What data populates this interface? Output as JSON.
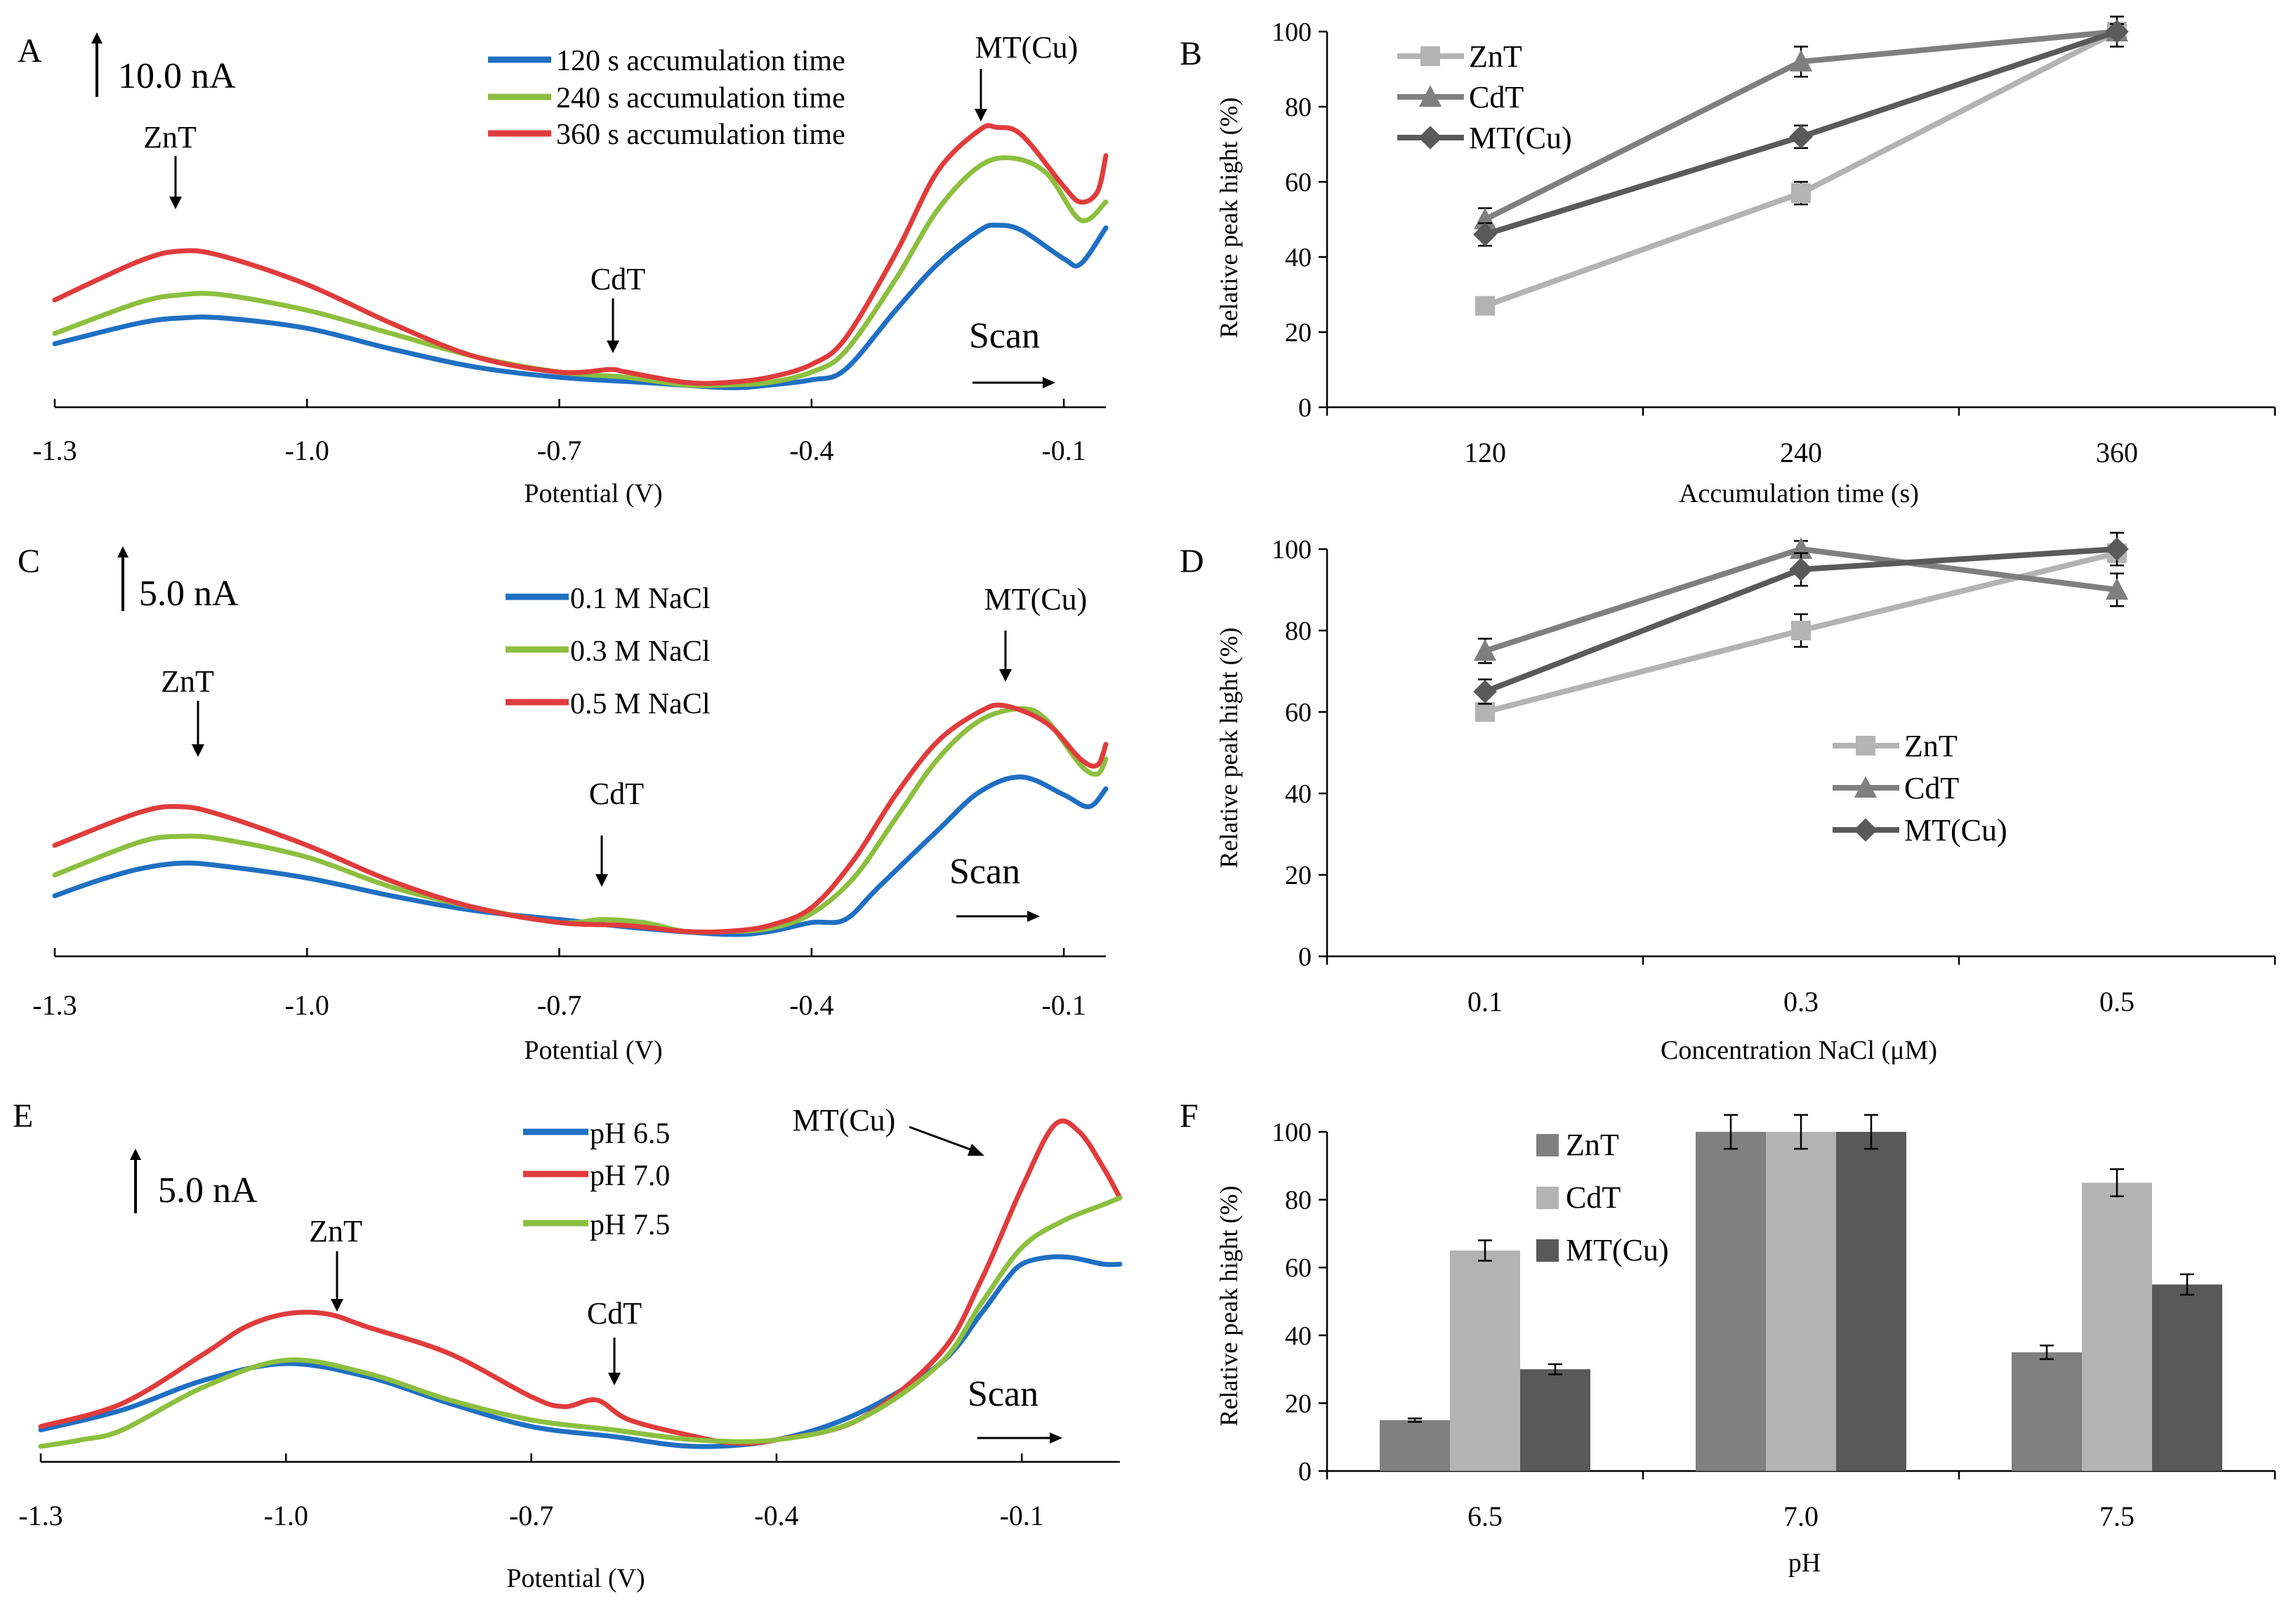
{
  "chart_data": [
    {
      "id": "A",
      "panel_label": "A",
      "type": "line",
      "xlabel": "Potential  (V)",
      "x_ticks": [
        "-1.3",
        "-1.0",
        "-0.7",
        "-0.4",
        "-0.1"
      ],
      "xlim": [
        -1.3,
        -0.05
      ],
      "ylim": [
        0,
        100
      ],
      "scale_bar": "10.0 nA",
      "annotations": {
        "znt": "ZnT",
        "cdt": "CdT",
        "mt": "MT(Cu)",
        "scan": "Scan"
      },
      "series": [
        {
          "name": "120 s accumulation time",
          "color": "#1f6fc2",
          "points": [
            [
              -1.3,
              17
            ],
            [
              -1.2,
              25
            ],
            [
              -1.15,
              27
            ],
            [
              -1.1,
              27
            ],
            [
              -1.0,
              23
            ],
            [
              -0.9,
              15
            ],
            [
              -0.8,
              8
            ],
            [
              -0.7,
              4
            ],
            [
              -0.6,
              2
            ],
            [
              -0.5,
              0
            ],
            [
              -0.45,
              1
            ],
            [
              -0.4,
              3
            ],
            [
              -0.36,
              7
            ],
            [
              -0.3,
              30
            ],
            [
              -0.25,
              48
            ],
            [
              -0.2,
              61
            ],
            [
              -0.18,
              63
            ],
            [
              -0.15,
              61
            ],
            [
              -0.1,
              50
            ],
            [
              -0.08,
              48
            ],
            [
              -0.05,
              62
            ]
          ]
        },
        {
          "name": "240 s accumulation time",
          "color": "#8cbf3f",
          "points": [
            [
              -1.3,
              21
            ],
            [
              -1.2,
              33
            ],
            [
              -1.15,
              36
            ],
            [
              -1.1,
              36
            ],
            [
              -1.0,
              30
            ],
            [
              -0.9,
              21
            ],
            [
              -0.8,
              12
            ],
            [
              -0.7,
              6
            ],
            [
              -0.62,
              4
            ],
            [
              -0.55,
              1
            ],
            [
              -0.5,
              1
            ],
            [
              -0.45,
              2
            ],
            [
              -0.4,
              6
            ],
            [
              -0.36,
              14
            ],
            [
              -0.3,
              42
            ],
            [
              -0.25,
              69
            ],
            [
              -0.2,
              86
            ],
            [
              -0.16,
              89
            ],
            [
              -0.12,
              83
            ],
            [
              -0.08,
              65
            ],
            [
              -0.05,
              72
            ]
          ]
        },
        {
          "name": "360 s accumulation time",
          "color": "#e03c3c",
          "points": [
            [
              -1.3,
              34
            ],
            [
              -1.2,
              49
            ],
            [
              -1.15,
              53
            ],
            [
              -1.1,
              51
            ],
            [
              -1.0,
              40
            ],
            [
              -0.9,
              25
            ],
            [
              -0.8,
              12
            ],
            [
              -0.7,
              6
            ],
            [
              -0.64,
              7
            ],
            [
              -0.62,
              6
            ],
            [
              -0.55,
              2
            ],
            [
              -0.5,
              2
            ],
            [
              -0.45,
              4
            ],
            [
              -0.4,
              9
            ],
            [
              -0.36,
              19
            ],
            [
              -0.3,
              52
            ],
            [
              -0.25,
              84
            ],
            [
              -0.2,
              100
            ],
            [
              -0.18,
              101
            ],
            [
              -0.15,
              98
            ],
            [
              -0.1,
              78
            ],
            [
              -0.08,
              72
            ],
            [
              -0.06,
              76
            ],
            [
              -0.05,
              90
            ]
          ]
        }
      ]
    },
    {
      "id": "B",
      "panel_label": "B",
      "type": "line",
      "xlabel": "Accumulation  time  (s)",
      "ylabel": "Relative  peak hight    (%)",
      "categories": [
        "120",
        "240",
        "360"
      ],
      "y_ticks": [
        "0",
        "20",
        "40",
        "60",
        "80",
        "100"
      ],
      "ylim": [
        0,
        100
      ],
      "series": [
        {
          "name": "ZnT",
          "marker": "square",
          "color": "#b3b3b3",
          "values": [
            27,
            57,
            100
          ],
          "errors": [
            0,
            3,
            2
          ]
        },
        {
          "name": "CdT",
          "marker": "triangle",
          "color": "#7f7f7f",
          "values": [
            50,
            92,
            100
          ],
          "errors": [
            3,
            4,
            2
          ]
        },
        {
          "name": "MT(Cu)",
          "marker": "diamond",
          "color": "#5a5a5a",
          "values": [
            46,
            72,
            100
          ],
          "errors": [
            3,
            3,
            4
          ]
        }
      ]
    },
    {
      "id": "C",
      "panel_label": "C",
      "type": "line",
      "xlabel": "Potential  (V)",
      "x_ticks": [
        "-1.3",
        "-1.0",
        "-0.7",
        "-0.4",
        "-0.1"
      ],
      "xlim": [
        -1.3,
        -0.05
      ],
      "ylim": [
        0,
        100
      ],
      "scale_bar": "5.0 nA",
      "annotations": {
        "znt": "ZnT",
        "cdt": "CdT",
        "mt": "MT(Cu)",
        "scan": "Scan"
      },
      "series": [
        {
          "name": "0.1 M NaCl",
          "color": "#1f6fc2",
          "points": [
            [
              -1.3,
              14
            ],
            [
              -1.25,
              19
            ],
            [
              -1.2,
              23
            ],
            [
              -1.15,
              25
            ],
            [
              -1.1,
              24
            ],
            [
              -1.0,
              20
            ],
            [
              -0.9,
              14
            ],
            [
              -0.8,
              9
            ],
            [
              -0.7,
              6
            ],
            [
              -0.6,
              3
            ],
            [
              -0.5,
              1
            ],
            [
              -0.45,
              2
            ],
            [
              -0.4,
              5
            ],
            [
              -0.36,
              6
            ],
            [
              -0.32,
              17
            ],
            [
              -0.25,
              36
            ],
            [
              -0.2,
              49
            ],
            [
              -0.15,
              54
            ],
            [
              -0.1,
              48
            ],
            [
              -0.07,
              44
            ],
            [
              -0.05,
              50
            ]
          ]
        },
        {
          "name": "0.3 M NaCl",
          "color": "#8cbf3f",
          "points": [
            [
              -1.3,
              21
            ],
            [
              -1.2,
              32
            ],
            [
              -1.15,
              34
            ],
            [
              -1.1,
              33
            ],
            [
              -1.0,
              27
            ],
            [
              -0.9,
              17
            ],
            [
              -0.8,
              10
            ],
            [
              -0.7,
              5
            ],
            [
              -0.65,
              6
            ],
            [
              -0.6,
              5
            ],
            [
              -0.55,
              2
            ],
            [
              -0.5,
              2
            ],
            [
              -0.45,
              3
            ],
            [
              -0.4,
              8
            ],
            [
              -0.35,
              20
            ],
            [
              -0.3,
              40
            ],
            [
              -0.25,
              60
            ],
            [
              -0.2,
              73
            ],
            [
              -0.15,
              77
            ],
            [
              -0.12,
              73
            ],
            [
              -0.08,
              58
            ],
            [
              -0.06,
              55
            ],
            [
              -0.05,
              60
            ]
          ]
        },
        {
          "name": "0.5 M NaCl",
          "color": "#e03c3c",
          "points": [
            [
              -1.3,
              31
            ],
            [
              -1.2,
              42
            ],
            [
              -1.15,
              44
            ],
            [
              -1.1,
              41
            ],
            [
              -1.0,
              31
            ],
            [
              -0.9,
              19
            ],
            [
              -0.8,
              10
            ],
            [
              -0.7,
              5
            ],
            [
              -0.62,
              4
            ],
            [
              -0.55,
              2
            ],
            [
              -0.5,
              2
            ],
            [
              -0.45,
              4
            ],
            [
              -0.4,
              10
            ],
            [
              -0.35,
              26
            ],
            [
              -0.3,
              48
            ],
            [
              -0.25,
              66
            ],
            [
              -0.2,
              76
            ],
            [
              -0.17,
              78
            ],
            [
              -0.12,
              72
            ],
            [
              -0.08,
              60
            ],
            [
              -0.06,
              58
            ],
            [
              -0.05,
              65
            ]
          ]
        }
      ]
    },
    {
      "id": "D",
      "panel_label": "D",
      "type": "line",
      "xlabel": "Concentration  NaCl (μM)",
      "ylabel": "Relative  peak hight    (%)",
      "categories": [
        "0.1",
        "0.3",
        "0.5"
      ],
      "y_ticks": [
        "0",
        "20",
        "40",
        "60",
        "80",
        "100"
      ],
      "ylim": [
        0,
        100
      ],
      "series": [
        {
          "name": "ZnT",
          "marker": "square",
          "color": "#b3b3b3",
          "values": [
            60,
            80,
            99
          ],
          "errors": [
            2,
            4,
            2
          ]
        },
        {
          "name": "CdT",
          "marker": "triangle",
          "color": "#7f7f7f",
          "values": [
            75,
            100,
            90
          ],
          "errors": [
            3,
            2,
            4
          ]
        },
        {
          "name": "MT(Cu)",
          "marker": "diamond",
          "color": "#5a5a5a",
          "values": [
            65,
            95,
            100
          ],
          "errors": [
            3,
            4,
            4
          ]
        }
      ]
    },
    {
      "id": "E",
      "panel_label": "E",
      "type": "line",
      "xlabel": "Potential  (V)",
      "x_ticks": [
        "-1.3",
        "-1.0",
        "-0.7",
        "-0.4",
        "-0.1"
      ],
      "xlim": [
        -1.3,
        0.02
      ],
      "ylim": [
        0,
        100
      ],
      "scale_bar": "5.0 nA",
      "annotations": {
        "znt": "ZnT",
        "cdt": "CdT",
        "mt": "MT(Cu)",
        "scan": "Scan"
      },
      "series": [
        {
          "name": "pH 6.5",
          "color": "#1f6fc2",
          "points": [
            [
              -1.3,
              5
            ],
            [
              -1.2,
              11
            ],
            [
              -1.1,
              20
            ],
            [
              -1.0,
              25
            ],
            [
              -0.9,
              21
            ],
            [
              -0.8,
              13
            ],
            [
              -0.7,
              6
            ],
            [
              -0.6,
              3
            ],
            [
              -0.5,
              0
            ],
            [
              -0.4,
              2
            ],
            [
              -0.3,
              10
            ],
            [
              -0.2,
              25
            ],
            [
              -0.15,
              40
            ],
            [
              -0.12,
              50
            ],
            [
              -0.1,
              55
            ],
            [
              -0.07,
              57
            ],
            [
              -0.04,
              57
            ],
            [
              0.0,
              55
            ],
            [
              0.02,
              55
            ]
          ]
        },
        {
          "name": "pH 7.0",
          "color": "#e03c3c",
          "points": [
            [
              -1.3,
              6
            ],
            [
              -1.2,
              13
            ],
            [
              -1.1,
              28
            ],
            [
              -1.05,
              36
            ],
            [
              -1.0,
              40
            ],
            [
              -0.95,
              40
            ],
            [
              -0.9,
              36
            ],
            [
              -0.8,
              28
            ],
            [
              -0.7,
              15
            ],
            [
              -0.66,
              12
            ],
            [
              -0.62,
              14
            ],
            [
              -0.58,
              8
            ],
            [
              -0.5,
              3
            ],
            [
              -0.45,
              1
            ],
            [
              -0.4,
              2
            ],
            [
              -0.3,
              8
            ],
            [
              -0.2,
              28
            ],
            [
              -0.15,
              50
            ],
            [
              -0.1,
              78
            ],
            [
              -0.06,
              97
            ],
            [
              -0.03,
              95
            ],
            [
              0.0,
              84
            ],
            [
              0.02,
              75
            ]
          ]
        },
        {
          "name": "pH 7.5",
          "color": "#8cbf3f",
          "points": [
            [
              -1.3,
              0
            ],
            [
              -1.25,
              2
            ],
            [
              -1.2,
              5
            ],
            [
              -1.1,
              18
            ],
            [
              -1.0,
              26
            ],
            [
              -0.9,
              22
            ],
            [
              -0.8,
              14
            ],
            [
              -0.7,
              8
            ],
            [
              -0.6,
              5
            ],
            [
              -0.5,
              2
            ],
            [
              -0.4,
              2
            ],
            [
              -0.3,
              8
            ],
            [
              -0.2,
              25
            ],
            [
              -0.15,
              43
            ],
            [
              -0.1,
              60
            ],
            [
              -0.05,
              68
            ],
            [
              0.0,
              73
            ],
            [
              0.02,
              75
            ]
          ]
        }
      ]
    },
    {
      "id": "F",
      "panel_label": "F",
      "type": "bar",
      "xlabel": "pH",
      "ylabel": "Relative  peak hight    (%)",
      "categories": [
        "6.5",
        "7.0",
        "7.5"
      ],
      "y_ticks": [
        "0",
        "20",
        "40",
        "60",
        "80",
        "100"
      ],
      "ylim": [
        0,
        100
      ],
      "series": [
        {
          "name": "ZnT",
          "color": "#808080",
          "values": [
            15,
            100,
            35
          ],
          "errors": [
            0.5,
            5,
            2
          ]
        },
        {
          "name": "CdT",
          "color": "#b3b3b3",
          "values": [
            65,
            100,
            85
          ],
          "errors": [
            3,
            5,
            4
          ]
        },
        {
          "name": "MT(Cu)",
          "color": "#595959",
          "values": [
            30,
            100,
            55
          ],
          "errors": [
            1.5,
            5,
            3
          ]
        }
      ]
    }
  ]
}
